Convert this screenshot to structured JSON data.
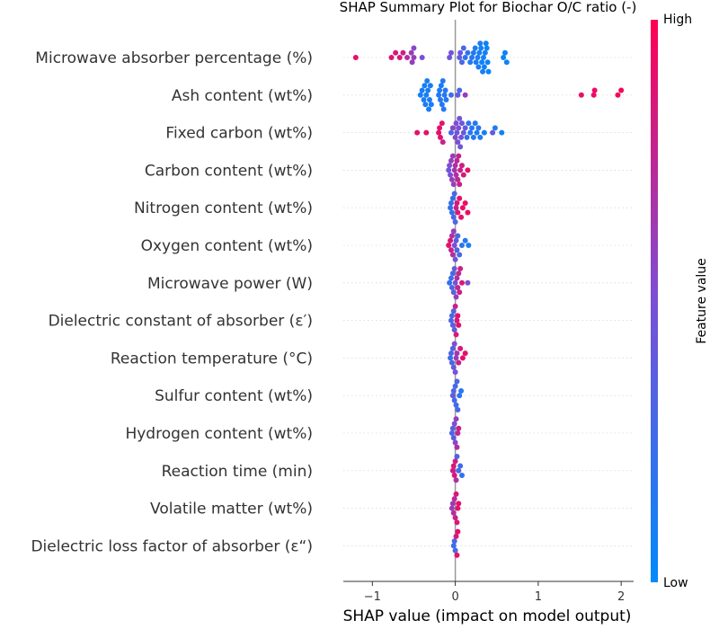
{
  "chart_data": {
    "type": "scatter",
    "subtype": "shap-beeswarm",
    "title": "SHAP Summary Plot for Biochar O/C ratio (-)",
    "xlabel": "SHAP value (impact on model output)",
    "x_ticks": [
      -1,
      0,
      1,
      2
    ],
    "x_tick_labels": [
      "−1",
      "0",
      "1",
      "2"
    ],
    "xlim": [
      -1.35,
      2.15
    ],
    "colorbar": {
      "label": "Feature value",
      "high_label": "High",
      "low_label": "Low",
      "high_color": "#ff0052",
      "low_color": "#008afb"
    },
    "features": [
      {
        "name": "Microwave absorber percentage (%)",
        "points": [
          [
            -1.2,
            0.9
          ],
          [
            -0.77,
            0.88
          ],
          [
            -0.72,
            0.85
          ],
          [
            -0.67,
            0.84
          ],
          [
            -0.63,
            0.8
          ],
          [
            -0.58,
            0.7
          ],
          [
            -0.53,
            0.62
          ],
          [
            -0.52,
            0.6
          ],
          [
            -0.5,
            0.6
          ],
          [
            -0.5,
            0.55
          ],
          [
            -0.4,
            0.5
          ],
          [
            -0.07,
            0.45
          ],
          [
            -0.05,
            0.45
          ],
          [
            0.05,
            0.4
          ],
          [
            0.06,
            0.45
          ],
          [
            0.08,
            0.3
          ],
          [
            0.1,
            0.3
          ],
          [
            0.12,
            0.2
          ],
          [
            0.15,
            0.2
          ],
          [
            0.18,
            0.15
          ],
          [
            0.2,
            0.15
          ],
          [
            0.22,
            0.15
          ],
          [
            0.24,
            0.12
          ],
          [
            0.25,
            0.1
          ],
          [
            0.27,
            0.12
          ],
          [
            0.28,
            0.1
          ],
          [
            0.29,
            0.1
          ],
          [
            0.3,
            0.1
          ],
          [
            0.31,
            0.08
          ],
          [
            0.32,
            0.08
          ],
          [
            0.33,
            0.1
          ],
          [
            0.34,
            0.08
          ],
          [
            0.35,
            0.08
          ],
          [
            0.36,
            0.1
          ],
          [
            0.37,
            0.05
          ],
          [
            0.38,
            0.05
          ],
          [
            0.39,
            0.05
          ],
          [
            0.4,
            0.05
          ],
          [
            0.58,
            0.05
          ],
          [
            0.6,
            0.05
          ],
          [
            0.62,
            0.05
          ]
        ]
      },
      {
        "name": "Ash content (wt%)",
        "points": [
          [
            -0.42,
            0.1
          ],
          [
            -0.4,
            0.1
          ],
          [
            -0.38,
            0.1
          ],
          [
            -0.37,
            0.1
          ],
          [
            -0.36,
            0.1
          ],
          [
            -0.35,
            0.1
          ],
          [
            -0.34,
            0.1
          ],
          [
            -0.33,
            0.1
          ],
          [
            -0.32,
            0.1
          ],
          [
            -0.31,
            0.1
          ],
          [
            -0.3,
            0.1
          ],
          [
            -0.29,
            0.1
          ],
          [
            -0.2,
            0.15
          ],
          [
            -0.19,
            0.12
          ],
          [
            -0.18,
            0.15
          ],
          [
            -0.17,
            0.12
          ],
          [
            -0.16,
            0.15
          ],
          [
            -0.15,
            0.15
          ],
          [
            -0.14,
            0.15
          ],
          [
            -0.13,
            0.15
          ],
          [
            -0.12,
            0.15
          ],
          [
            -0.11,
            0.15
          ],
          [
            -0.05,
            0.25
          ],
          [
            0.03,
            0.4
          ],
          [
            0.05,
            0.3
          ],
          [
            0.12,
            0.6
          ],
          [
            1.52,
            0.9
          ],
          [
            1.67,
            0.92
          ],
          [
            1.68,
            0.93
          ],
          [
            1.96,
            0.95
          ],
          [
            2.0,
            0.98
          ]
        ]
      },
      {
        "name": "Fixed carbon (wt%)",
        "points": [
          [
            -0.46,
            0.9
          ],
          [
            -0.35,
            0.92
          ],
          [
            -0.2,
            0.9
          ],
          [
            -0.19,
            0.9
          ],
          [
            -0.18,
            0.88
          ],
          [
            -0.16,
            0.88
          ],
          [
            -0.15,
            0.8
          ],
          [
            -0.05,
            0.3
          ],
          [
            -0.03,
            0.55
          ],
          [
            0.0,
            0.55
          ],
          [
            0.01,
            0.5
          ],
          [
            0.02,
            0.45
          ],
          [
            0.03,
            0.5
          ],
          [
            0.04,
            0.5
          ],
          [
            0.05,
            0.45
          ],
          [
            0.06,
            0.45
          ],
          [
            0.07,
            0.45
          ],
          [
            0.08,
            0.45
          ],
          [
            0.1,
            0.45
          ],
          [
            0.12,
            0.4
          ],
          [
            0.14,
            0.2
          ],
          [
            0.16,
            0.2
          ],
          [
            0.18,
            0.15
          ],
          [
            0.2,
            0.15
          ],
          [
            0.22,
            0.15
          ],
          [
            0.24,
            0.15
          ],
          [
            0.26,
            0.12
          ],
          [
            0.28,
            0.15
          ],
          [
            0.3,
            0.12
          ],
          [
            0.35,
            0.1
          ],
          [
            0.45,
            0.4
          ],
          [
            0.48,
            0.1
          ],
          [
            0.56,
            0.05
          ]
        ]
      },
      {
        "name": "Carbon content (wt%)",
        "points": [
          [
            -0.08,
            0.45
          ],
          [
            -0.07,
            0.5
          ],
          [
            -0.06,
            0.5
          ],
          [
            -0.05,
            0.6
          ],
          [
            -0.04,
            0.6
          ],
          [
            -0.03,
            0.6
          ],
          [
            -0.02,
            0.6
          ],
          [
            -0.01,
            0.65
          ],
          [
            0.0,
            0.7
          ],
          [
            0.01,
            0.7
          ],
          [
            0.02,
            0.75
          ],
          [
            0.03,
            0.75
          ],
          [
            0.04,
            0.78
          ],
          [
            0.05,
            0.8
          ],
          [
            0.06,
            0.8
          ],
          [
            0.08,
            0.82
          ],
          [
            0.1,
            0.85
          ],
          [
            0.15,
            0.9
          ]
        ]
      },
      {
        "name": "Nitrogen content (wt%)",
        "points": [
          [
            -0.06,
            0.2
          ],
          [
            -0.05,
            0.25
          ],
          [
            -0.04,
            0.2
          ],
          [
            -0.03,
            0.2
          ],
          [
            -0.02,
            0.3
          ],
          [
            -0.01,
            0.3
          ],
          [
            0.0,
            0.3
          ],
          [
            0.01,
            0.8
          ],
          [
            0.02,
            0.85
          ],
          [
            0.03,
            0.85
          ],
          [
            0.05,
            0.9
          ],
          [
            0.07,
            0.9
          ],
          [
            0.09,
            0.92
          ],
          [
            0.12,
            0.93
          ],
          [
            0.15,
            0.95
          ]
        ]
      },
      {
        "name": "Oxygen content (wt%)",
        "points": [
          [
            -0.08,
            0.9
          ],
          [
            -0.06,
            0.85
          ],
          [
            -0.05,
            0.8
          ],
          [
            -0.04,
            0.7
          ],
          [
            -0.03,
            0.7
          ],
          [
            -0.02,
            0.6
          ],
          [
            -0.01,
            0.5
          ],
          [
            0.0,
            0.45
          ],
          [
            0.01,
            0.4
          ],
          [
            0.02,
            0.3
          ],
          [
            0.03,
            0.3
          ],
          [
            0.05,
            0.3
          ],
          [
            0.08,
            0.2
          ],
          [
            0.12,
            0.15
          ],
          [
            0.16,
            0.1
          ]
        ]
      },
      {
        "name": "Microwave power (W)",
        "points": [
          [
            -0.07,
            0.2
          ],
          [
            -0.05,
            0.25
          ],
          [
            -0.04,
            0.3
          ],
          [
            -0.03,
            0.3
          ],
          [
            -0.02,
            0.35
          ],
          [
            -0.01,
            0.4
          ],
          [
            0.0,
            0.5
          ],
          [
            0.01,
            0.6
          ],
          [
            0.02,
            0.7
          ],
          [
            0.03,
            0.75
          ],
          [
            0.04,
            0.75
          ],
          [
            0.05,
            0.8
          ],
          [
            0.06,
            0.8
          ],
          [
            0.08,
            0.85
          ],
          [
            0.15,
            0.5
          ]
        ]
      },
      {
        "name": "Dielectric constant of absorber (ε′)",
        "points": [
          [
            -0.05,
            0.3
          ],
          [
            -0.04,
            0.3
          ],
          [
            -0.03,
            0.35
          ],
          [
            -0.02,
            0.35
          ],
          [
            -0.01,
            0.4
          ],
          [
            0.0,
            0.8
          ],
          [
            0.01,
            0.85
          ],
          [
            0.02,
            0.85
          ],
          [
            0.03,
            0.9
          ],
          [
            0.04,
            0.9
          ]
        ]
      },
      {
        "name": "Reaction temperature (°C)",
        "points": [
          [
            -0.06,
            0.25
          ],
          [
            -0.05,
            0.3
          ],
          [
            -0.04,
            0.3
          ],
          [
            -0.03,
            0.35
          ],
          [
            -0.02,
            0.4
          ],
          [
            -0.01,
            0.5
          ],
          [
            0.0,
            0.5
          ],
          [
            0.01,
            0.6
          ],
          [
            0.02,
            0.65
          ],
          [
            0.04,
            0.8
          ],
          [
            0.06,
            0.85
          ],
          [
            0.09,
            0.9
          ],
          [
            0.12,
            0.9
          ]
        ]
      },
      {
        "name": "Sulfur content (wt%)",
        "points": [
          [
            -0.03,
            0.4
          ],
          [
            -0.02,
            0.35
          ],
          [
            -0.01,
            0.3
          ],
          [
            0.0,
            0.3
          ],
          [
            0.01,
            0.25
          ],
          [
            0.02,
            0.3
          ],
          [
            0.03,
            0.3
          ],
          [
            0.05,
            0.2
          ],
          [
            0.07,
            0.15
          ]
        ]
      },
      {
        "name": "Hydrogen content (wt%)",
        "points": [
          [
            -0.04,
            0.3
          ],
          [
            -0.03,
            0.35
          ],
          [
            -0.02,
            0.4
          ],
          [
            -0.01,
            0.5
          ],
          [
            0.0,
            0.55
          ],
          [
            0.01,
            0.6
          ],
          [
            0.02,
            0.7
          ],
          [
            0.03,
            0.75
          ],
          [
            0.04,
            0.8
          ]
        ]
      },
      {
        "name": "Reaction time (min)",
        "points": [
          [
            -0.03,
            0.8
          ],
          [
            -0.02,
            0.85
          ],
          [
            -0.01,
            0.85
          ],
          [
            0.0,
            0.8
          ],
          [
            0.01,
            0.7
          ],
          [
            0.02,
            0.35
          ],
          [
            0.04,
            0.3
          ],
          [
            0.06,
            0.25
          ],
          [
            0.08,
            0.2
          ]
        ]
      },
      {
        "name": "Volatile matter (wt%)",
        "points": [
          [
            -0.04,
            0.6
          ],
          [
            -0.03,
            0.65
          ],
          [
            -0.02,
            0.7
          ],
          [
            -0.01,
            0.75
          ],
          [
            0.0,
            0.8
          ],
          [
            0.01,
            0.85
          ],
          [
            0.02,
            0.85
          ],
          [
            0.03,
            0.9
          ],
          [
            0.04,
            0.9
          ]
        ]
      },
      {
        "name": "Dielectric loss factor of absorber (ε“)",
        "points": [
          [
            -0.02,
            0.25
          ],
          [
            -0.01,
            0.3
          ],
          [
            0.0,
            0.3
          ],
          [
            0.01,
            0.85
          ],
          [
            0.02,
            0.9
          ],
          [
            0.03,
            0.9
          ]
        ]
      }
    ]
  }
}
